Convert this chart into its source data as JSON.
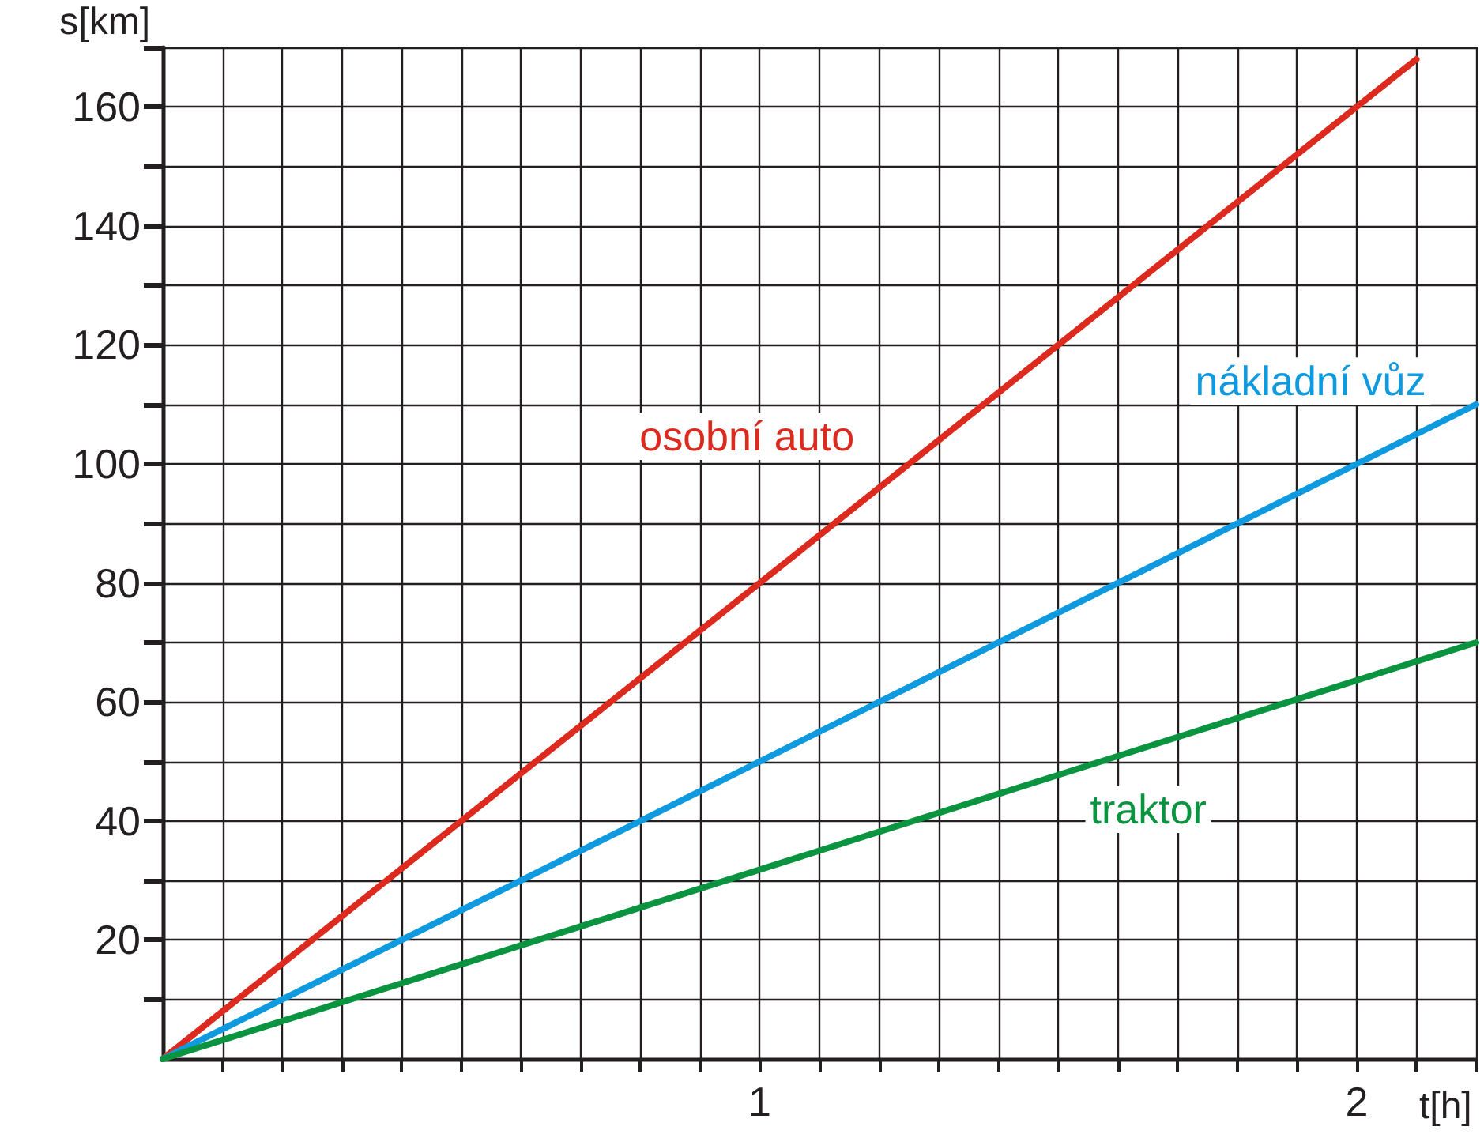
{
  "chart_data": {
    "type": "line",
    "xlabel": "t[h]",
    "ylabel": "s[km]",
    "xlim": [
      0,
      2.2
    ],
    "ylim": [
      0,
      170
    ],
    "xticks": [
      {
        "value": 0.1,
        "label": null
      },
      {
        "value": 0.2,
        "label": null
      },
      {
        "value": 0.3,
        "label": null
      },
      {
        "value": 0.4,
        "label": null
      },
      {
        "value": 0.5,
        "label": null
      },
      {
        "value": 0.6,
        "label": null
      },
      {
        "value": 0.7,
        "label": null
      },
      {
        "value": 0.8,
        "label": null
      },
      {
        "value": 0.9,
        "label": null
      },
      1,
      {
        "value": 1.1,
        "label": null
      },
      {
        "value": 1.2,
        "label": null
      },
      {
        "value": 1.3,
        "label": null
      },
      {
        "value": 1.4,
        "label": null
      },
      {
        "value": 1.5,
        "label": null
      },
      {
        "value": 1.6,
        "label": null
      },
      {
        "value": 1.7,
        "label": null
      },
      {
        "value": 1.8,
        "label": null
      },
      {
        "value": 1.9,
        "label": null
      },
      2,
      {
        "value": 2.1,
        "label": null
      },
      {
        "value": 2.2,
        "label": null
      }
    ],
    "yticks": [
      {
        "value": 10,
        "label": null
      },
      20,
      {
        "value": 30,
        "label": null
      },
      40,
      {
        "value": 50,
        "label": null
      },
      60,
      {
        "value": 70,
        "label": null
      },
      80,
      {
        "value": 90,
        "label": null
      },
      100,
      {
        "value": 110,
        "label": null
      },
      120,
      {
        "value": 130,
        "label": null
      },
      140,
      {
        "value": 150,
        "label": null
      },
      160,
      {
        "value": 170,
        "label": null
      }
    ],
    "grid": true,
    "marker": "none",
    "line_style": "solid",
    "legend": false,
    "series": [
      {
        "name": "osobní auto",
        "color": "#dc2a1e",
        "x": [
          0,
          2.1
        ],
        "values": [
          0,
          168
        ]
      },
      {
        "name": "nákladní vůz",
        "color": "#0f9ae0",
        "x": [
          0,
          2.2
        ],
        "values": [
          0,
          110
        ]
      },
      {
        "name": "traktor",
        "color": "#0a9440",
        "x": [
          0,
          2.2
        ],
        "values": [
          0,
          70
        ]
      }
    ]
  }
}
